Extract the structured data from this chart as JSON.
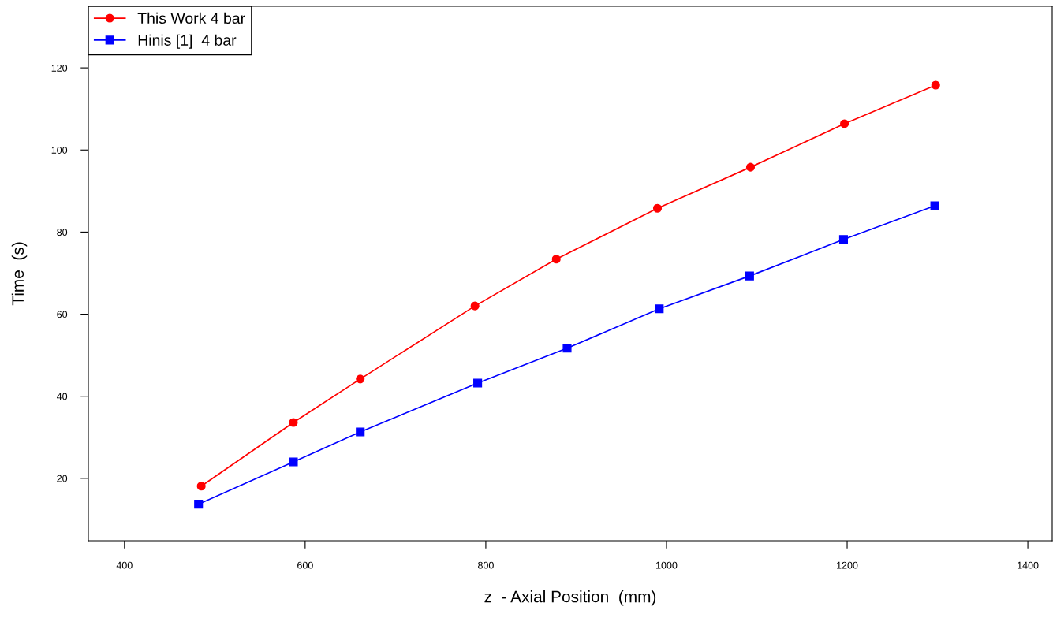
{
  "chart_data": {
    "type": "line",
    "xlabel": "z  - Axial Position  (mm)",
    "ylabel": "Time  (s)",
    "xlim": [
      360,
      1427
    ],
    "ylim": [
      4.8,
      135
    ],
    "xticks": [
      400,
      600,
      800,
      1000,
      1200,
      1400
    ],
    "yticks": [
      20,
      40,
      60,
      80,
      100,
      120
    ],
    "grid": false,
    "legend": "top left",
    "series": [
      {
        "name": "This Work 4 bar",
        "color": "#ff0000",
        "marker": "circle",
        "x": [
          485,
          587,
          661,
          788,
          878,
          990,
          1093,
          1197,
          1298
        ],
        "values": [
          18.1,
          33.6,
          44.2,
          62.0,
          73.4,
          85.8,
          95.8,
          106.4,
          115.8
        ]
      },
      {
        "name": "Hinis [1]  4 bar",
        "color": "#0000ff",
        "marker": "square",
        "x": [
          482,
          587,
          661,
          791,
          890,
          992,
          1092,
          1196,
          1297
        ],
        "values": [
          13.7,
          24.0,
          31.3,
          43.2,
          51.7,
          61.3,
          69.3,
          78.2,
          86.4
        ]
      }
    ]
  }
}
